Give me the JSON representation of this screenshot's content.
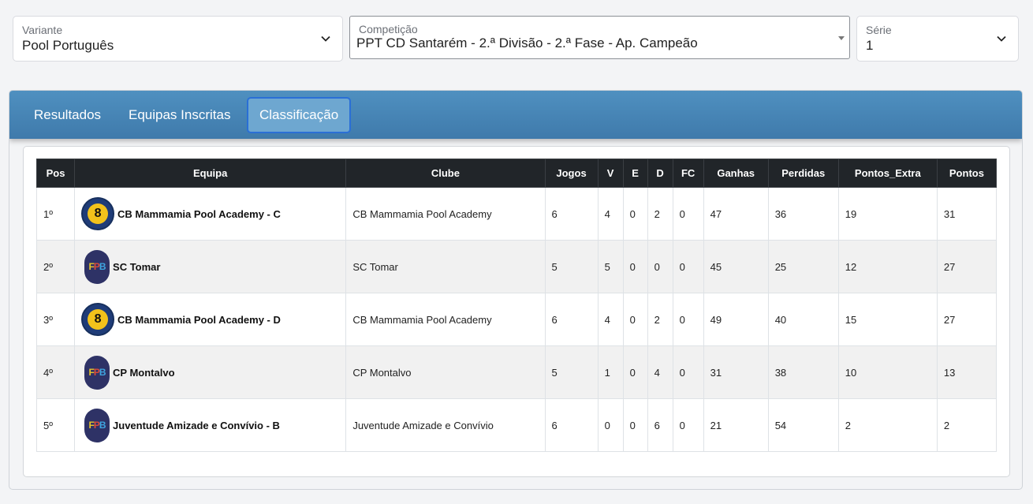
{
  "filters": {
    "variante": {
      "label": "Variante",
      "value": "Pool Português"
    },
    "competicao": {
      "label": "Competição",
      "value": "PPT CD Santarém - 2.ª Divisão - 2.ª Fase - Ap. Campeão"
    },
    "serie": {
      "label": "Série",
      "value": "1"
    }
  },
  "tabs": [
    {
      "label": "Resultados"
    },
    {
      "label": "Equipas Inscritas"
    },
    {
      "label": "Classificação",
      "active": true
    }
  ],
  "table": {
    "headers": [
      "Pos",
      "Equipa",
      "Clube",
      "Jogos",
      "V",
      "E",
      "D",
      "FC",
      "Ganhas",
      "Perdidas",
      "Pontos_Extra",
      "Pontos"
    ],
    "rows": [
      {
        "pos": "1º",
        "equipa": "CB Mammamia Pool Academy - C",
        "logo": "mammamia-logo",
        "clube": "CB Mammamia Pool Academy",
        "jogos": "6",
        "v": "4",
        "e": "0",
        "d": "2",
        "fc": "0",
        "ganhas": "47",
        "perdidas": "36",
        "extra": "19",
        "pontos": "31"
      },
      {
        "pos": "2º",
        "equipa": "SC Tomar",
        "logo": "fpb-logo",
        "clube": "SC Tomar",
        "jogos": "5",
        "v": "5",
        "e": "0",
        "d": "0",
        "fc": "0",
        "ganhas": "45",
        "perdidas": "25",
        "extra": "12",
        "pontos": "27"
      },
      {
        "pos": "3º",
        "equipa": "CB Mammamia Pool Academy - D",
        "logo": "mammamia-logo",
        "clube": "CB Mammamia Pool Academy",
        "jogos": "6",
        "v": "4",
        "e": "0",
        "d": "2",
        "fc": "0",
        "ganhas": "49",
        "perdidas": "40",
        "extra": "15",
        "pontos": "27"
      },
      {
        "pos": "4º",
        "equipa": "CP Montalvo",
        "logo": "fpb-logo",
        "clube": "CP Montalvo",
        "jogos": "5",
        "v": "1",
        "e": "0",
        "d": "4",
        "fc": "0",
        "ganhas": "31",
        "perdidas": "38",
        "extra": "10",
        "pontos": "13"
      },
      {
        "pos": "5º",
        "equipa": "Juventude Amizade e Convívio - B",
        "logo": "fpb-logo",
        "clube": "Juventude Amizade e Convívio",
        "jogos": "6",
        "v": "0",
        "e": "0",
        "d": "6",
        "fc": "0",
        "ganhas": "21",
        "perdidas": "54",
        "extra": "2",
        "pontos": "2"
      }
    ]
  },
  "colors": {
    "tabbar": "#4a88b8",
    "header": "#212529",
    "active_tab_border": "#2a6fd6"
  }
}
